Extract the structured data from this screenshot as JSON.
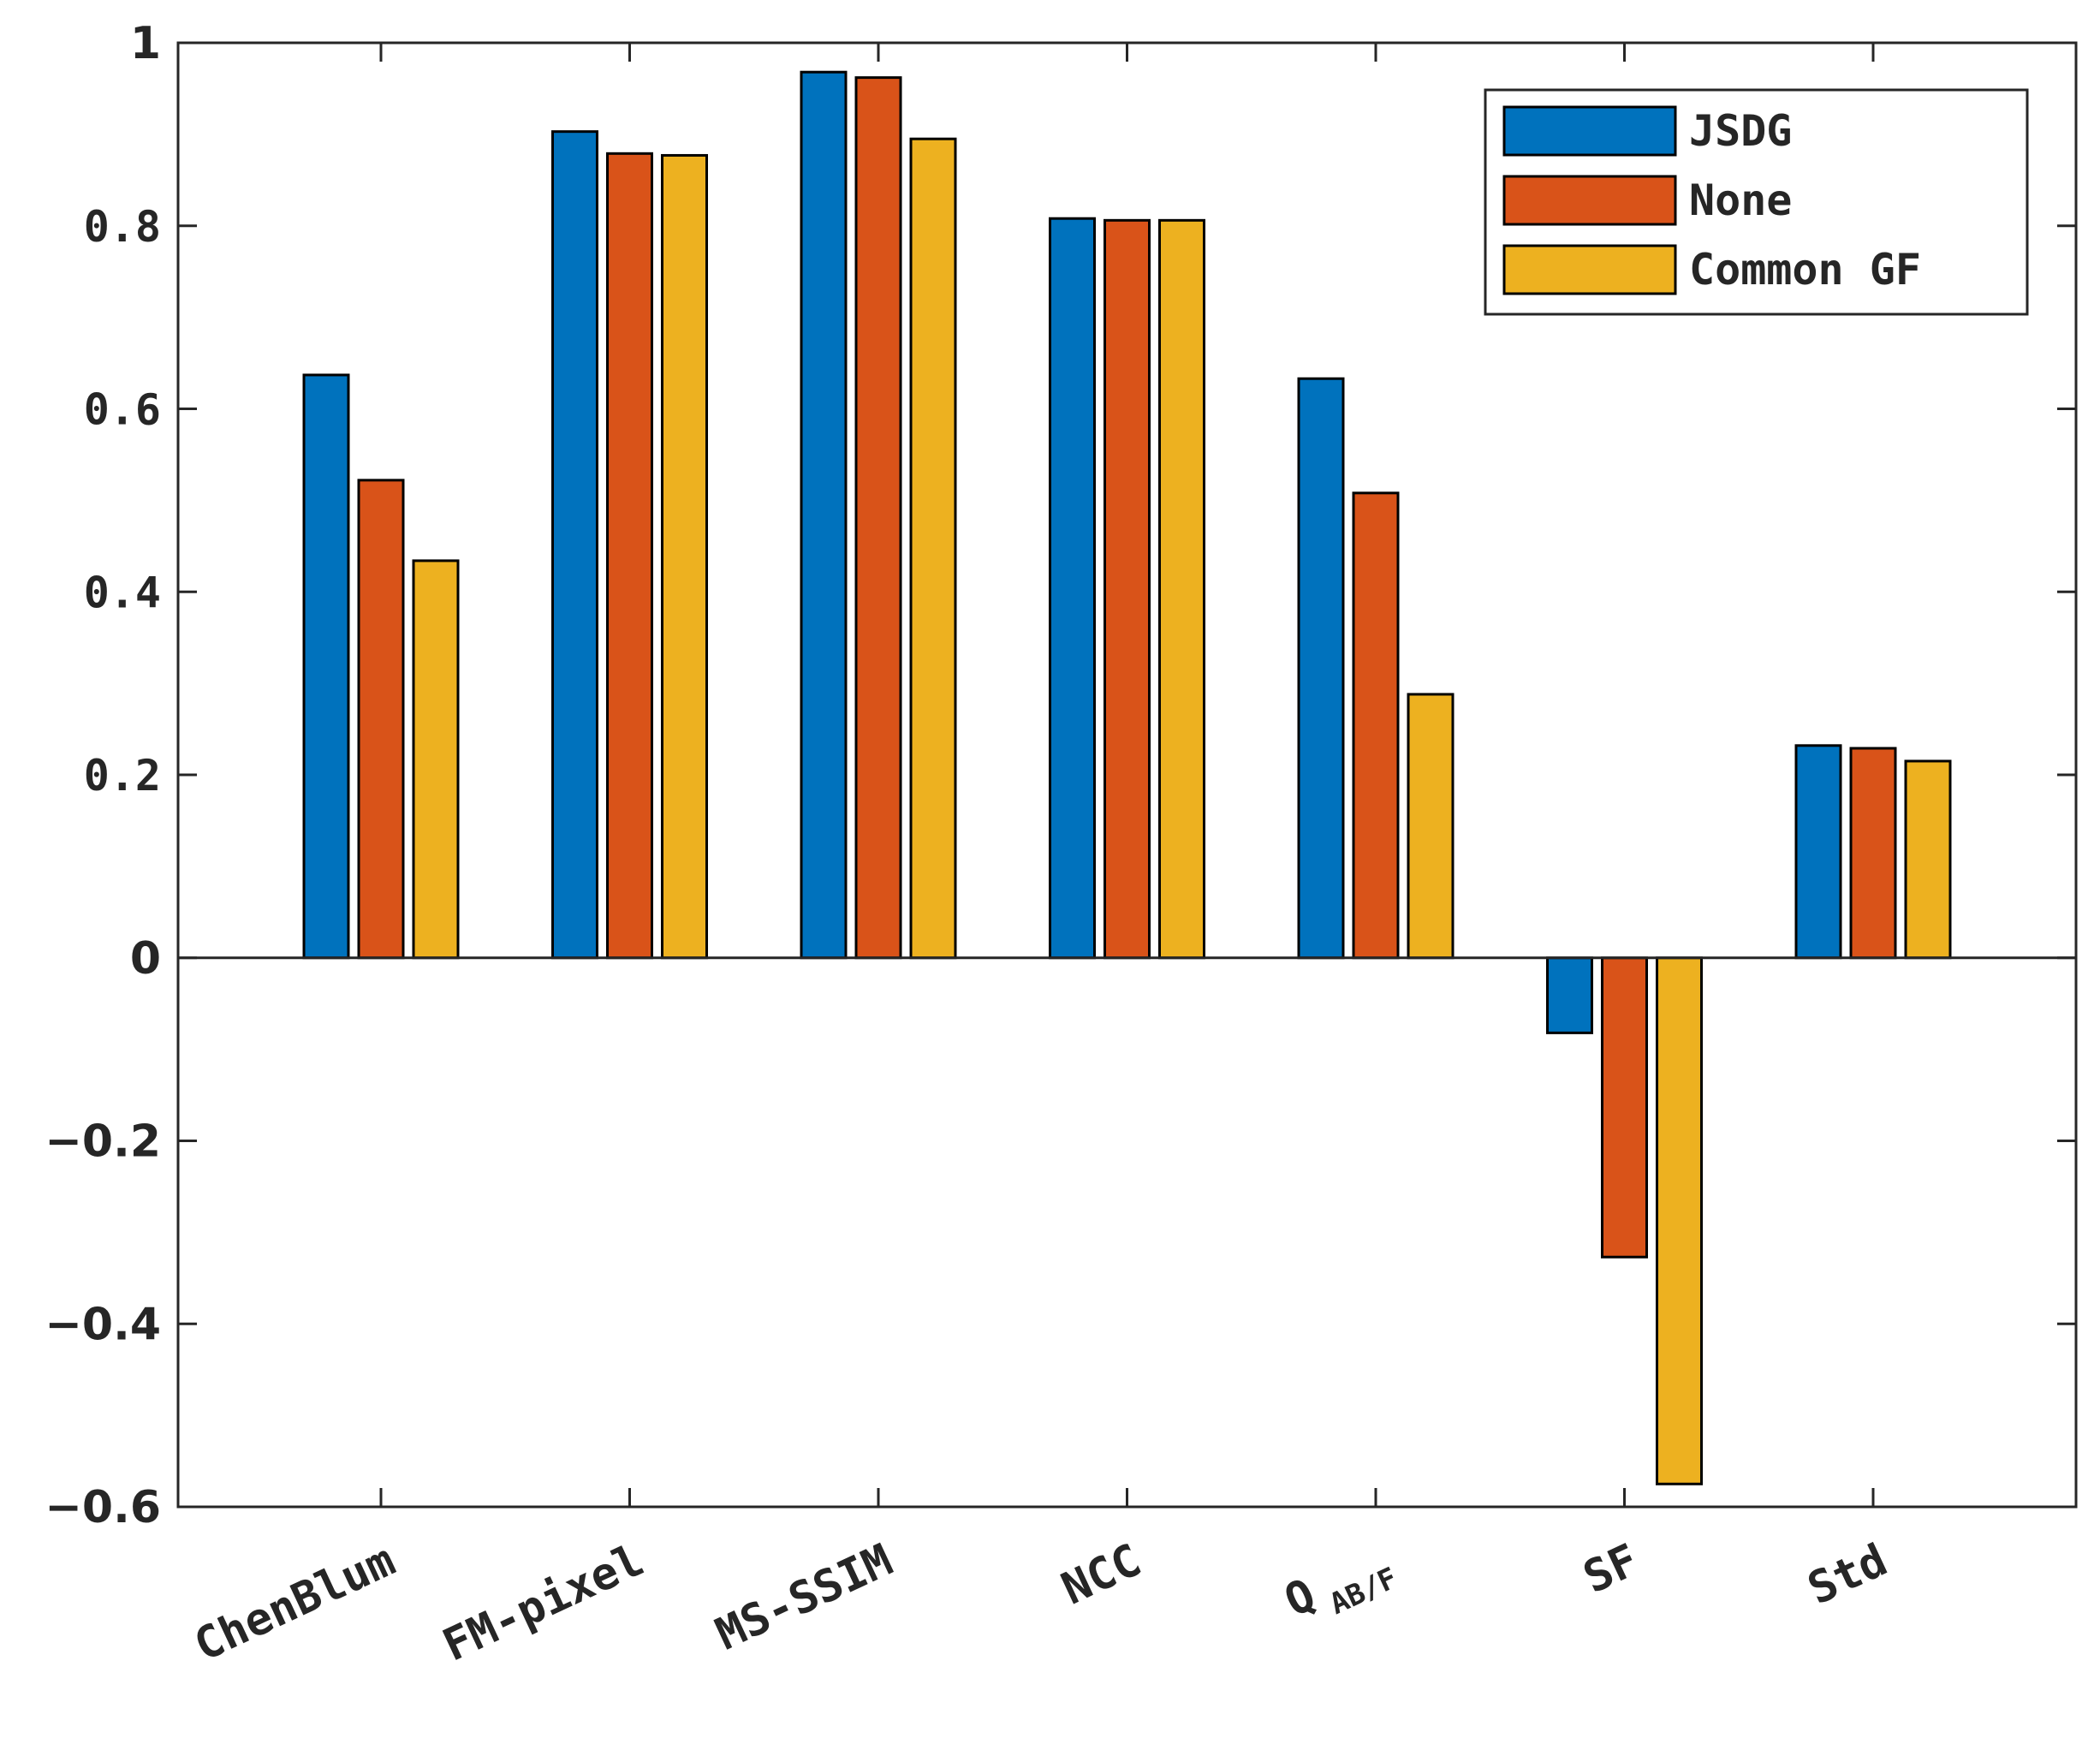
{
  "chart_data": {
    "type": "bar",
    "title": "",
    "xlabel": "",
    "ylabel": "",
    "ylim": [
      -0.6,
      1
    ],
    "yticks": [
      {
        "value": -0.6,
        "label": "−0.6",
        "style": "sans"
      },
      {
        "value": -0.4,
        "label": "−0.4",
        "style": "sans"
      },
      {
        "value": -0.2,
        "label": "−0.2",
        "style": "sans"
      },
      {
        "value": 0,
        "label": "0",
        "style": "sans"
      },
      {
        "value": 0.2,
        "label": "0.2",
        "style": "mono"
      },
      {
        "value": 0.4,
        "label": "0.4",
        "style": "mono"
      },
      {
        "value": 0.6,
        "label": "0.6",
        "style": "mono"
      },
      {
        "value": 0.8,
        "label": "0.8",
        "style": "mono"
      },
      {
        "value": 1,
        "label": "1",
        "style": "sans"
      }
    ],
    "categories": [
      {
        "label": "ChenBlum",
        "sub": ""
      },
      {
        "label": "FM-pixel",
        "sub": ""
      },
      {
        "label": "MS-SSIM",
        "sub": ""
      },
      {
        "label": "NCC",
        "sub": ""
      },
      {
        "label": "Q",
        "sub": "AB/F"
      },
      {
        "label": "SF",
        "sub": ""
      },
      {
        "label": "Std",
        "sub": ""
      }
    ],
    "series": [
      {
        "name": "JSDG",
        "color": "#0072BD",
        "values": [
          0.637,
          0.903,
          0.968,
          0.808,
          0.633,
          -0.082,
          0.232
        ]
      },
      {
        "name": "None",
        "color": "#D95319",
        "values": [
          0.522,
          0.879,
          0.962,
          0.806,
          0.508,
          -0.327,
          0.229
        ]
      },
      {
        "name": "Common GF",
        "color": "#EDB120",
        "values": [
          0.434,
          0.877,
          0.895,
          0.806,
          0.288,
          -0.575,
          0.215
        ]
      }
    ],
    "legend_position": "top-right",
    "grid": false
  }
}
